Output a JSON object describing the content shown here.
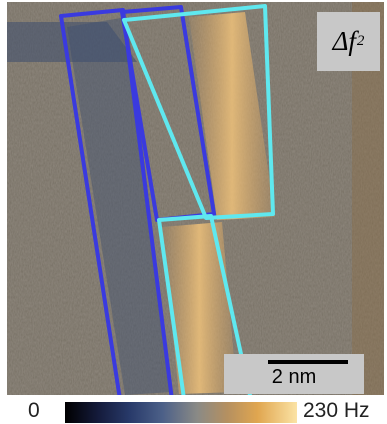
{
  "image": {
    "description_colors": {
      "background": "#6a6a66",
      "warm": "#d9a15a",
      "cool": "#3b4f72"
    },
    "overlays": [
      {
        "name": "upper-left-box",
        "color": "#3a3adf"
      },
      {
        "name": "upper-right-box",
        "color": "#5fe8ef"
      },
      {
        "name": "lower-left-box",
        "color": "#3a3adf"
      },
      {
        "name": "lower-right-box",
        "color": "#5fe8ef"
      }
    ]
  },
  "quantity": {
    "symbol": "Δf",
    "subscript": "2"
  },
  "scalebar": {
    "label": "2 nm"
  },
  "colorbar": {
    "min_label": "0",
    "max_label": "230 Hz"
  }
}
